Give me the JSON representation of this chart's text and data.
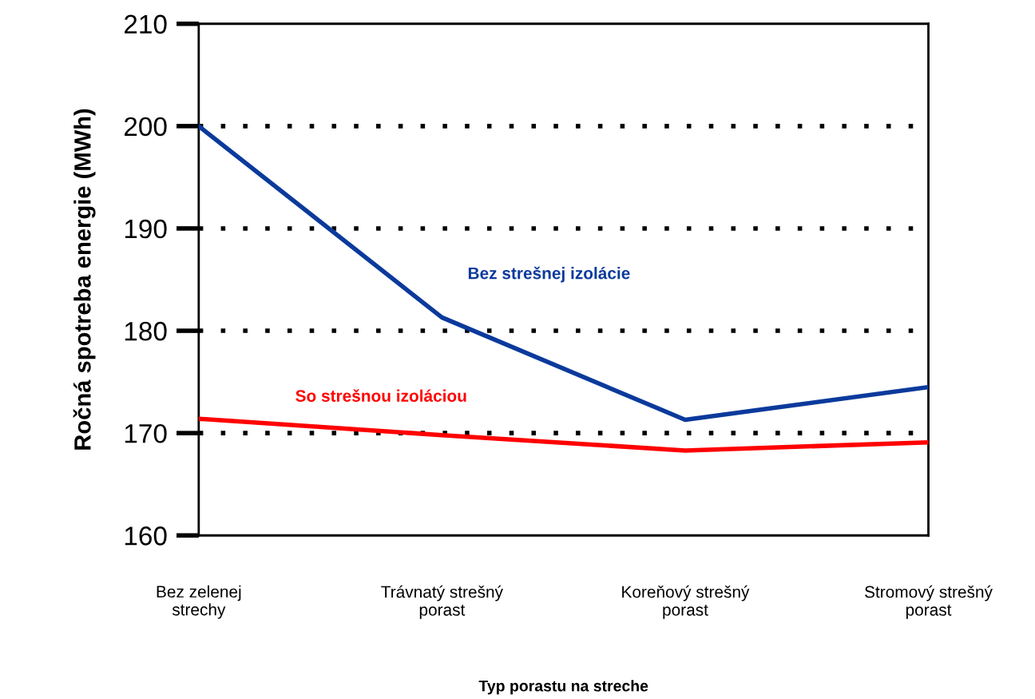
{
  "chart_data": {
    "type": "line",
    "xlabel": "Typ porastu na streche",
    "ylabel": "Ročná spotreba energie (MWh)",
    "categories": [
      "Bez zelenej\nstrechy",
      "Trávnatý strešný\nporast",
      "Koreňový strešný\nporast",
      "Stromový strešný\nporast"
    ],
    "series": [
      {
        "name": "Bez strešnej izolácie",
        "color": "#0b3a9c",
        "values": [
          200,
          181.3,
          171.3,
          174.5
        ]
      },
      {
        "name": "So strešnou izoláciou",
        "color": "#ff0000",
        "values": [
          171.4,
          169.8,
          168.3,
          169.1
        ]
      }
    ],
    "ylim": [
      160,
      210
    ],
    "yticks": [
      160,
      170,
      180,
      190,
      200,
      210
    ],
    "grid": "y",
    "legend": false,
    "marker": "none",
    "line_style": "solid"
  }
}
